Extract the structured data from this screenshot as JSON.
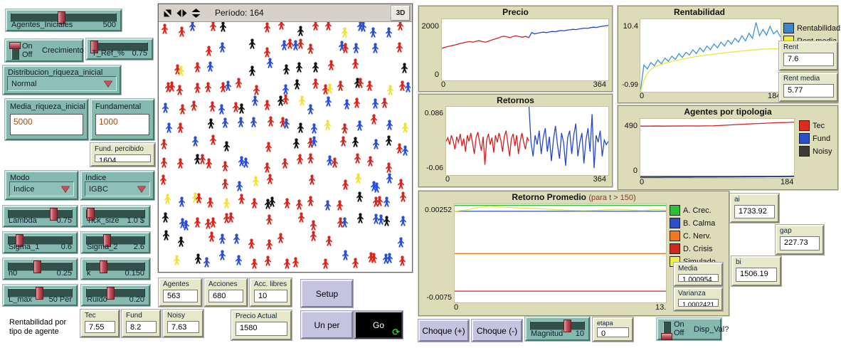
{
  "world": {
    "period_label": "Período: 164",
    "btn_3d": "3D",
    "seed": 20,
    "cols": 17,
    "rows": 13,
    "density": 0.8,
    "double_prob": 0.14,
    "agent_colors": [
      "#d7271f",
      "#2b4fd8",
      "#141414",
      "#efe23a"
    ],
    "agent_weights": [
      0.46,
      0.34,
      0.12,
      0.08
    ]
  },
  "sliders": {
    "agentes_iniciales": {
      "label": "Agentes_Iniciales",
      "value": "500",
      "handle_pct": 47
    },
    "t_ref": {
      "label": "T_Ref_%",
      "value": "0.75",
      "handle_pct": 3
    },
    "lambda": {
      "label": "Lambda",
      "value": "0.75",
      "handle_pct": 70
    },
    "tick_size": {
      "label": "Tick_size",
      "value": "1.0 $",
      "handle_pct": 5
    },
    "sigma_1": {
      "label": "Sigma_1",
      "value": "0.6",
      "handle_pct": 16
    },
    "sigma_2": {
      "label": "Sigma_2",
      "value": "2.6",
      "handle_pct": 33
    },
    "n0": {
      "label": "n0",
      "value": "0.25",
      "handle_pct": 44
    },
    "k": {
      "label": "k",
      "value": "0.150",
      "handle_pct": 27
    },
    "l_max": {
      "label": "L_max",
      "value": "50 Per",
      "handle_pct": 47
    },
    "ruido": {
      "label": "Ruido",
      "value": "0.20",
      "handle_pct": 39
    },
    "magnitud": {
      "label": "Magnitud",
      "value": "10",
      "handle_pct": 67
    }
  },
  "switches": {
    "crecimiento": {
      "label": "Crecimiento",
      "on": "On",
      "off": "Off",
      "state": "On"
    },
    "disp_val": {
      "label": "Disp_Val?",
      "on": "On",
      "off": "Off",
      "state": "Off"
    }
  },
  "choosers": {
    "distribucion": {
      "label": "Distribucion_riqueza_inicial",
      "value": "Normal"
    },
    "modo": {
      "label": "Modo",
      "value": "Indice"
    },
    "indice": {
      "label": "Indice",
      "value": "IGBC"
    }
  },
  "inputs": {
    "media_riqueza": {
      "label": "Media_riqueza_inicial",
      "value": "5000"
    },
    "fundamental": {
      "label": "Fundamental",
      "value": "1000"
    },
    "etapa": {
      "label": "etapa",
      "value": "0"
    }
  },
  "monitors": {
    "fund_percibido": {
      "label": "Fund. percibido",
      "value": "1604"
    },
    "tec": {
      "label": "Tec",
      "value": "7.55"
    },
    "fund": {
      "label": "Fund",
      "value": "8.2"
    },
    "noisy": {
      "label": "Noisy",
      "value": "7.63"
    },
    "agentes": {
      "label": "Agentes",
      "value": "563"
    },
    "acciones": {
      "label": "Acciones",
      "value": "680"
    },
    "acc_libres": {
      "label": "Acc. libres",
      "value": "10"
    },
    "precio_actual": {
      "label": "Precio Actual",
      "value": "1580"
    },
    "rent": {
      "label": "Rent",
      "value": "7.6"
    },
    "rent_media": {
      "label": "Rent media",
      "value": "5.77"
    },
    "media": {
      "label": "Media",
      "value": "1.000954"
    },
    "varianza": {
      "label": "Varianza",
      "value": "1.0002421"
    },
    "ai": {
      "label": "ai",
      "value": "1733.92"
    },
    "gap": {
      "label": "gap",
      "value": "227.73"
    },
    "bi": {
      "label": "bi",
      "value": "1506.19"
    }
  },
  "buttons": {
    "setup": "Setup",
    "un_per": "Un per",
    "go": "Go",
    "go_loop_icon": "⟳",
    "choque_plus": "Choque (+)",
    "choque_minus": "Choque (-)"
  },
  "note": {
    "line1": "Rentabilidad por",
    "line2": "tipo de agente"
  },
  "chart_data": {
    "precio": {
      "type": "line",
      "title": "Precio",
      "xlim": [
        0,
        364
      ],
      "ylim": [
        0,
        2000
      ],
      "y_top": "2000",
      "y_bottom": "0",
      "x_left": "0",
      "x_right": "364",
      "series": [
        {
          "name": "precio-antes-choque",
          "color": "#d42020",
          "x0": 0,
          "x1": 190,
          "values": [
            1050,
            1080,
            1110,
            1130,
            1155,
            1180,
            1210,
            1230,
            1255,
            1270,
            1250,
            1280,
            1300,
            1270,
            1250,
            1280,
            1320,
            1350,
            1380,
            1420,
            1445,
            1425,
            1400,
            1440,
            1455,
            1430,
            1415,
            1440,
            1395
          ]
        },
        {
          "name": "precio-despues-choque",
          "color": "#2448c8",
          "x0": 190,
          "x1": 364,
          "values": [
            1395,
            1565,
            1520,
            1545,
            1565,
            1580,
            1560,
            1585,
            1600,
            1590,
            1615,
            1630,
            1620,
            1645,
            1655,
            1670,
            1660,
            1680,
            1695,
            1710,
            1700,
            1725,
            1740,
            1730,
            1755,
            1770,
            1785,
            1800
          ]
        }
      ]
    },
    "retornos": {
      "type": "line",
      "title": "Retornos",
      "xlim": [
        0,
        364
      ],
      "ylim": [
        -0.06,
        0.086
      ],
      "y_top": "0.086",
      "y_bottom": "-0.06",
      "x_left": "0",
      "x_right": "364",
      "series": [
        {
          "name": "retornos-antes",
          "color": "#d42020",
          "x0": 0,
          "x1": 186,
          "values": [
            0.012,
            0.02,
            0.005,
            0.025,
            0.013,
            -0.005,
            0.022,
            0.01,
            0.028,
            0.002,
            0.018,
            -0.01,
            0.025,
            0.012,
            0.03,
            0.008,
            -0.015,
            0.02,
            0.032,
            0.01,
            -0.008,
            0.022,
            -0.038,
            0.015,
            0.028,
            0.005,
            0.02,
            -0.012,
            0.025,
            0.01,
            0.03,
            0.015,
            -0.01,
            0.022,
            0.035,
            0.008,
            -0.02,
            0.018,
            0.028,
            0.002,
            0.025,
            -0.015,
            0.012,
            0.03,
            0.01,
            -0.005,
            0.02,
            0.013
          ]
        },
        {
          "name": "retornos-despues",
          "color": "#2448c8",
          "x0": 186,
          "x1": 364,
          "values": [
            0.086,
            0.01,
            -0.02,
            0.025,
            0.005,
            0.035,
            -0.015,
            0.02,
            0.04,
            -0.01,
            0.022,
            -0.03,
            0.015,
            0.045,
            0.005,
            -0.025,
            0.03,
            0.01,
            -0.04,
            0.02,
            0.035,
            -0.015,
            0.025,
            0.05,
            -0.02,
            0.01,
            0.03,
            -0.035,
            0.015,
            0.04,
            -0.01,
            0.07,
            -0.045,
            0.025,
            0.01,
            0.035,
            -0.02,
            0.015,
            0.005,
            0.012
          ]
        }
      ]
    },
    "rentabilidad": {
      "type": "line",
      "title": "Rentabilidad",
      "xlim": [
        0,
        184
      ],
      "ylim": [
        -0.99,
        10.4
      ],
      "y_top": "10.4",
      "y_bottom": "-0.99",
      "x_left": "0",
      "x_right": "184",
      "legend": [
        {
          "label": "Rentabilidad",
          "color": "#3d85c4"
        },
        {
          "label": "Rent media",
          "color": "#efec3c"
        }
      ],
      "series": [
        {
          "name": "rentabilidad",
          "color": "#3d96ce",
          "x0": 0,
          "x1": 184,
          "values": [
            -0.99,
            3.2,
            2.6,
            3.6,
            3.1,
            4.0,
            3.4,
            4.3,
            3.8,
            4.6,
            4.1,
            5.0,
            4.4,
            5.2,
            4.8,
            5.6,
            5.0,
            5.9,
            5.3,
            6.2,
            5.6,
            6.5,
            5.9,
            6.8,
            6.2,
            7.1,
            6.5,
            7.4,
            6.8,
            7.8,
            7.0,
            8.2,
            7.4,
            9.9,
            7.8,
            8.8,
            7.9,
            9.3,
            8.1,
            8.6,
            7.6
          ]
        },
        {
          "name": "rent-media",
          "color": "#e8e83c",
          "x0": 0,
          "x1": 184,
          "values": [
            -0.99,
            0.8,
            1.9,
            2.5,
            2.9,
            3.1,
            3.3,
            3.5,
            3.6,
            3.8,
            3.9,
            4.0,
            4.15,
            4.25,
            4.35,
            4.45,
            4.55,
            4.62,
            4.7,
            4.78,
            4.85,
            4.92,
            5.0,
            5.06,
            5.12,
            5.18,
            5.24,
            5.3,
            5.36,
            5.42,
            5.47,
            5.52,
            5.57,
            5.62,
            5.66,
            5.7,
            5.72,
            5.74,
            5.75,
            5.76,
            5.77
          ]
        }
      ]
    },
    "tipologia": {
      "type": "line",
      "title": "Agentes por tipologia",
      "xlim": [
        0,
        184
      ],
      "ylim": [
        0,
        520
      ],
      "y_top": "490",
      "y_bottom": "0",
      "x_left": "0",
      "x_right": "184",
      "legend": [
        {
          "label": "Tec",
          "color": "#e02a20"
        },
        {
          "label": "Fund",
          "color": "#2b50c8"
        },
        {
          "label": "Noisy",
          "color": "#3a3a3a"
        }
      ],
      "series": [
        {
          "name": "tec",
          "color": "#d42020",
          "x0": 0,
          "x1": 184,
          "values": [
            456,
            456,
            457,
            456,
            457,
            457,
            458,
            457,
            458,
            459,
            462,
            466,
            470,
            474,
            477,
            480,
            483,
            486,
            488,
            491
          ]
        },
        {
          "name": "fund",
          "color": "#2b50c8",
          "x0": 0,
          "x1": 184,
          "values": [
            4,
            4,
            4,
            5,
            5,
            5,
            5,
            6,
            6,
            6,
            7,
            7,
            8,
            8,
            9,
            9,
            10,
            10,
            11,
            12
          ]
        },
        {
          "name": "noisy",
          "color": "#333333",
          "x0": 0,
          "x1": 184,
          "values": [
            13,
            13,
            13,
            13,
            13,
            13,
            13,
            13,
            13,
            13,
            13,
            13,
            13,
            14,
            14,
            14,
            14,
            14,
            15,
            16
          ]
        }
      ]
    },
    "retorno_promedio": {
      "type": "line",
      "title": "Retorno Promedio",
      "subtitle": "(para t > 150)",
      "xlim": [
        0,
        13
      ],
      "ylim": [
        -0.0078,
        0.00265
      ],
      "y_top": "0.00252",
      "y_bottom": "-0.0075",
      "x_left": "0",
      "x_right": "13.",
      "legend": [
        {
          "label": "A. Crec.",
          "color": "#2ebe3c"
        },
        {
          "label": "B. Calma",
          "color": "#2b50c8"
        },
        {
          "label": "C. Nerv.",
          "color": "#f07820"
        },
        {
          "label": "D. Crisis",
          "color": "#d02820"
        },
        {
          "label": "Simulado",
          "color": "#f0ee40"
        }
      ],
      "series": [
        {
          "name": "a-crec",
          "color": "#2ebe3c",
          "x0": 0,
          "x1": 13,
          "values": [
            0.00252,
            0.00252
          ]
        },
        {
          "name": "b-calma",
          "color": "#2b50c8",
          "x0": 0,
          "x1": 13,
          "values": [
            0.0019,
            0.0019
          ]
        },
        {
          "name": "c-nerv",
          "color": "#f07820",
          "x0": 0,
          "x1": 13,
          "values": [
            -0.0026,
            -0.0026
          ]
        },
        {
          "name": "d-crisis",
          "color": "#d02820",
          "x0": 0,
          "x1": 13,
          "values": [
            -0.0066,
            -0.0066
          ]
        },
        {
          "name": "simulado",
          "color": "#e8e83c",
          "x0": 0,
          "x1": 13,
          "values": [
            0.0019,
            0.00205,
            0.0023,
            0.00245,
            0.00235,
            0.00228,
            0.00222,
            0.00218,
            0.00212,
            0.00205,
            0.002,
            0.00197,
            0.002,
            0.00207,
            0.00213,
            0.00204,
            0.00198,
            0.00208,
            0.00203
          ]
        }
      ]
    }
  }
}
